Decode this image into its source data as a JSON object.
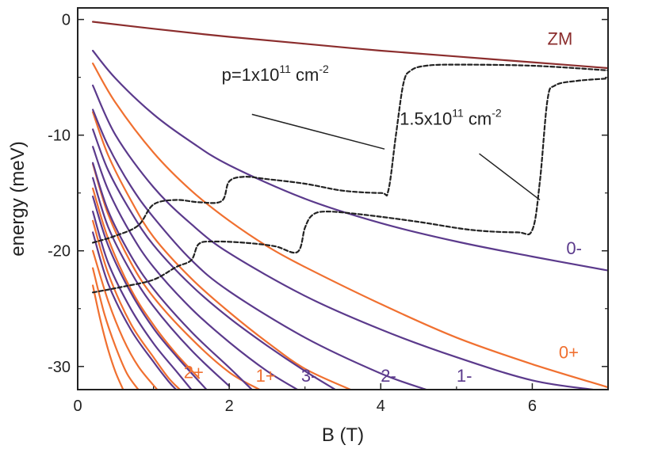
{
  "chart_data": {
    "type": "line",
    "xlabel": "B (T)",
    "ylabel": "energy (meV)",
    "xlim": [
      0,
      7
    ],
    "ylim": [
      -32,
      1
    ],
    "xticks": [
      0,
      2,
      4,
      6
    ],
    "yticks": [
      0,
      -10,
      -20,
      -30
    ],
    "grid": false,
    "colors": {
      "zm": "#8b2d2d",
      "minus": "#5b3a8c",
      "plus": "#f07030",
      "density": "#222222"
    },
    "series": [
      {
        "name": "ZM",
        "color": "zm",
        "x": [
          0.2,
          1,
          2,
          3,
          4,
          5,
          6,
          7
        ],
        "y": [
          -0.2,
          -0.8,
          -1.5,
          -2.1,
          -2.7,
          -3.2,
          -3.7,
          -4.2
        ]
      },
      {
        "name": "0-",
        "color": "minus",
        "x": [
          0.2,
          0.5,
          1,
          1.5,
          2,
          3,
          4,
          5,
          6,
          7
        ],
        "y": [
          -2.7,
          -5.1,
          -8.2,
          -10.6,
          -12.6,
          -15.5,
          -17.6,
          -19.2,
          -20.5,
          -21.7
        ]
      },
      {
        "name": "0+",
        "color": "plus",
        "x": [
          0.2,
          0.5,
          1,
          1.5,
          2,
          2.5,
          3,
          4,
          5,
          6,
          7
        ],
        "y": [
          -3.8,
          -7.2,
          -11.5,
          -14.8,
          -17.4,
          -19.6,
          -21.4,
          -24.6,
          -27.5,
          -29.8,
          -31.8
        ]
      },
      {
        "name": "1-",
        "color": "minus",
        "x": [
          0.2,
          0.5,
          1,
          1.5,
          2,
          3,
          4,
          5,
          6,
          6.8
        ],
        "y": [
          -5.7,
          -10.0,
          -14.5,
          -17.7,
          -20.2,
          -23.9,
          -26.8,
          -29.2,
          -31.2,
          -32.0
        ]
      },
      {
        "name": "1+",
        "color": "plus",
        "x": [
          0.2,
          0.4,
          0.7,
          1,
          1.5,
          2,
          2.5,
          3,
          3.6
        ],
        "y": [
          -8.0,
          -11.7,
          -15.6,
          -18.8,
          -22.4,
          -25.3,
          -27.9,
          -30.2,
          -32.0
        ]
      },
      {
        "name": "2-",
        "color": "minus",
        "x": [
          0.2,
          0.4,
          0.7,
          1,
          1.5,
          2,
          3,
          4,
          4.6
        ],
        "y": [
          -7.8,
          -10.9,
          -14.4,
          -17.1,
          -20.8,
          -23.5,
          -27.5,
          -30.6,
          -32.0
        ]
      },
      {
        "name": "",
        "color": "minus",
        "x": [
          0.2,
          0.4,
          0.7,
          1,
          1.5,
          2,
          2.5,
          3,
          3.4
        ],
        "y": [
          -9.5,
          -13.0,
          -16.6,
          -19.5,
          -23.0,
          -25.8,
          -28.2,
          -30.4,
          -32.0
        ]
      },
      {
        "name": "3-",
        "color": "minus",
        "x": [
          0.2,
          0.4,
          0.7,
          1,
          1.5,
          2,
          2.5,
          2.9
        ],
        "y": [
          -11.0,
          -14.7,
          -18.5,
          -21.4,
          -25.0,
          -27.9,
          -30.4,
          -32.0
        ]
      },
      {
        "name": "2+",
        "color": "plus",
        "x": [
          0.2,
          0.4,
          0.7,
          1,
          1.5,
          2,
          2.4
        ],
        "y": [
          -12.5,
          -16.8,
          -21.0,
          -24.0,
          -27.6,
          -30.5,
          -32.0
        ]
      },
      {
        "name": "",
        "color": "minus",
        "x": [
          0.2,
          0.4,
          0.7,
          1,
          1.5,
          2,
          2.3
        ],
        "y": [
          -12.4,
          -16.5,
          -20.4,
          -23.3,
          -27.0,
          -30.1,
          -32.0
        ]
      },
      {
        "name": "",
        "color": "minus",
        "x": [
          0.2,
          0.4,
          0.7,
          1,
          1.5,
          2
        ],
        "y": [
          -13.7,
          -17.9,
          -21.8,
          -24.8,
          -28.6,
          -31.7
        ]
      },
      {
        "name": "",
        "color": "plus",
        "x": [
          0.2,
          0.4,
          0.7,
          1,
          1.3,
          1.6
        ],
        "y": [
          -14.6,
          -18.9,
          -23.3,
          -26.4,
          -28.9,
          -31.0
        ]
      },
      {
        "name": "",
        "color": "minus",
        "x": [
          0.2,
          0.4,
          0.7,
          1,
          1.3,
          1.7
        ],
        "y": [
          -15.3,
          -19.5,
          -23.6,
          -26.7,
          -29.1,
          -32.0
        ]
      },
      {
        "name": "",
        "color": "minus",
        "x": [
          0.2,
          0.4,
          0.7,
          1,
          1.3,
          1.5
        ],
        "y": [
          -16.6,
          -21.0,
          -25.0,
          -28.0,
          -30.4,
          -32.0
        ]
      },
      {
        "name": "",
        "color": "plus",
        "x": [
          0.2,
          0.4,
          0.7,
          1,
          1.2,
          1.35
        ],
        "y": [
          -17.4,
          -21.9,
          -26.3,
          -29.2,
          -31.0,
          -32.0
        ]
      },
      {
        "name": "",
        "color": "minus",
        "x": [
          0.2,
          0.4,
          0.7,
          1,
          1.2,
          1.3
        ],
        "y": [
          -18.4,
          -22.8,
          -26.8,
          -29.6,
          -31.3,
          -32.0
        ]
      },
      {
        "name": "",
        "color": "plus",
        "x": [
          0.2,
          0.4,
          0.6,
          0.8,
          1.05
        ],
        "y": [
          -20.0,
          -24.3,
          -27.6,
          -30.0,
          -32.0
        ]
      },
      {
        "name": "",
        "color": "plus",
        "x": [
          0.2,
          0.35,
          0.5,
          0.65,
          0.8
        ],
        "y": [
          -21.5,
          -25.4,
          -28.3,
          -30.6,
          -32.0
        ]
      },
      {
        "name": "",
        "color": "plus",
        "x": [
          0.2,
          0.3,
          0.4,
          0.5,
          0.6
        ],
        "y": [
          -23.0,
          -26.0,
          -28.5,
          -30.5,
          -32.0
        ]
      },
      {
        "name": "p=1x10^11 cm^-2",
        "color": "density",
        "dashed": true,
        "x": [
          0.2,
          0.5,
          0.8,
          1.0,
          1.3,
          1.6,
          1.9,
          2.0,
          2.2,
          2.5,
          3.0,
          3.5,
          4.0,
          4.1,
          4.2,
          4.3,
          4.4,
          4.6,
          5.0,
          6.0,
          7.0
        ],
        "y": [
          -19.3,
          -18.7,
          -17.8,
          -16.0,
          -15.6,
          -15.8,
          -15.7,
          -14.0,
          -13.6,
          -13.8,
          -14.2,
          -14.8,
          -15.0,
          -14.8,
          -10.0,
          -5.5,
          -4.4,
          -4.0,
          -3.9,
          -4.0,
          -4.4
        ]
      },
      {
        "name": "1.5x10^11 cm^-2",
        "color": "density",
        "dashed": true,
        "x": [
          0.2,
          0.6,
          1.0,
          1.3,
          1.5,
          1.6,
          1.8,
          2.2,
          2.6,
          2.9,
          3.0,
          3.1,
          3.3,
          3.8,
          4.5,
          5.2,
          5.8,
          6.0,
          6.1,
          6.2,
          6.3,
          6.6,
          7.0
        ],
        "y": [
          -23.6,
          -23.1,
          -22.5,
          -21.4,
          -20.8,
          -19.4,
          -19.2,
          -19.3,
          -19.6,
          -20.1,
          -18.0,
          -16.9,
          -16.6,
          -16.9,
          -17.5,
          -18.2,
          -18.4,
          -18.2,
          -14.0,
          -7.0,
          -5.7,
          -5.3,
          -5.1
        ]
      }
    ],
    "annotations": [
      {
        "text": "ZM",
        "color": "zm",
        "x": 6.2,
        "y": -2.2,
        "anchor": "start"
      },
      {
        "text": "0-",
        "color": "minus",
        "x": 6.45,
        "y": -20.3,
        "anchor": "start"
      },
      {
        "text": "0+",
        "color": "plus",
        "x": 6.35,
        "y": -29.3,
        "anchor": "start"
      },
      {
        "text": "1-",
        "color": "minus",
        "x": 5.0,
        "y": -31.3,
        "anchor": "start"
      },
      {
        "text": "2-",
        "color": "minus",
        "x": 4.0,
        "y": -31.3,
        "anchor": "start"
      },
      {
        "text": "3-",
        "color": "minus",
        "x": 2.95,
        "y": -31.3,
        "anchor": "start"
      },
      {
        "text": "1+",
        "color": "plus",
        "x": 2.35,
        "y": -31.3,
        "anchor": "start"
      },
      {
        "text": "2+",
        "color": "plus",
        "x": 1.4,
        "y": -31.0,
        "anchor": "start"
      }
    ],
    "density_labels": [
      {
        "base": "p=1x10",
        "exp": "11",
        "unit": " cm",
        "unit_exp": "-2",
        "x": 1.9,
        "y": -5.3,
        "pointer": [
          [
            2.3,
            -8.2
          ],
          [
            4.05,
            -11.2
          ]
        ]
      },
      {
        "base": "1.5x10",
        "exp": "11",
        "unit": " cm",
        "unit_exp": "-2",
        "x": 4.25,
        "y": -9.1,
        "pointer": [
          [
            5.3,
            -11.6
          ],
          [
            6.1,
            -15.6
          ]
        ]
      }
    ]
  }
}
